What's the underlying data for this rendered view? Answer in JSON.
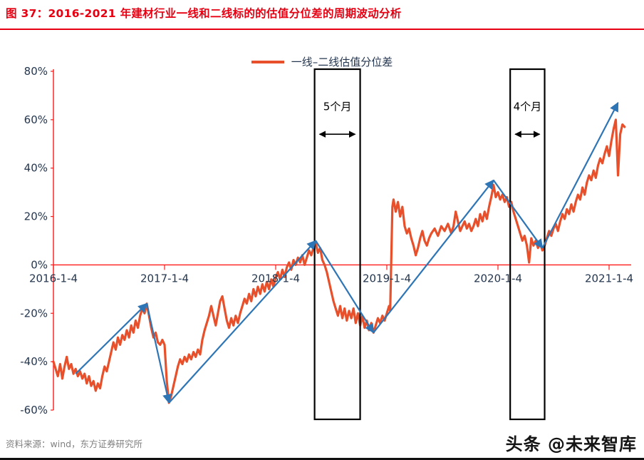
{
  "page": {
    "title": "图 37：2016-2021 年建材行业一线和二线标的的估值分位差的周期波动分析",
    "source_note": "资料来源：wind，东方证券研究所",
    "watermark": "头条 @未来智库"
  },
  "colors": {
    "title_red": "#e60012",
    "axis_red": "#ff1a1a",
    "series_line": "#e8502b",
    "trend_arrow_blue": "#2e75b6",
    "box_black": "#000000",
    "tick_text": "#24364f",
    "source_gray": "#808080",
    "watermark_dark": "#141414"
  },
  "chart_data": {
    "type": "line",
    "title": "",
    "legend": [
      {
        "label": "一线–二线估值分位差",
        "color": "#e8502b"
      }
    ],
    "x_axis": {
      "domain_years": [
        0,
        5.17
      ],
      "ticks": [
        {
          "t": 0,
          "label": "2016-1-4"
        },
        {
          "t": 1,
          "label": "2017-1-4"
        },
        {
          "t": 2,
          "label": "2018-1-4"
        },
        {
          "t": 3,
          "label": "2019-1-4"
        },
        {
          "t": 4,
          "label": "2020-1-4"
        },
        {
          "t": 5,
          "label": "2021-1-4"
        }
      ]
    },
    "y_axis": {
      "min": -60,
      "max": 80,
      "step": 20,
      "ticks": [
        {
          "v": 80,
          "label": "80%"
        },
        {
          "v": 60,
          "label": "60%"
        },
        {
          "v": 40,
          "label": "40%"
        },
        {
          "v": 20,
          "label": "20%"
        },
        {
          "v": 0,
          "label": "0%"
        },
        {
          "v": -20,
          "label": "-20%"
        },
        {
          "v": -40,
          "label": "-40%"
        },
        {
          "v": -60,
          "label": "-60%"
        }
      ]
    },
    "zero_line": true,
    "grid": false,
    "series": [
      {
        "name": "一线–二线估值分位差",
        "color": "#e8502b",
        "points": [
          [
            0.0,
            -40
          ],
          [
            0.02,
            -43
          ],
          [
            0.04,
            -46
          ],
          [
            0.06,
            -41
          ],
          [
            0.08,
            -47
          ],
          [
            0.1,
            -42
          ],
          [
            0.12,
            -38
          ],
          [
            0.14,
            -43
          ],
          [
            0.16,
            -41
          ],
          [
            0.18,
            -45
          ],
          [
            0.2,
            -43
          ],
          [
            0.22,
            -46
          ],
          [
            0.24,
            -44
          ],
          [
            0.26,
            -47
          ],
          [
            0.28,
            -45
          ],
          [
            0.3,
            -49
          ],
          [
            0.32,
            -46
          ],
          [
            0.34,
            -50
          ],
          [
            0.36,
            -48
          ],
          [
            0.38,
            -52
          ],
          [
            0.4,
            -49
          ],
          [
            0.42,
            -51
          ],
          [
            0.44,
            -46
          ],
          [
            0.46,
            -42
          ],
          [
            0.48,
            -44
          ],
          [
            0.5,
            -40
          ],
          [
            0.52,
            -36
          ],
          [
            0.54,
            -32
          ],
          [
            0.56,
            -35
          ],
          [
            0.58,
            -30
          ],
          [
            0.6,
            -33
          ],
          [
            0.62,
            -29
          ],
          [
            0.64,
            -31
          ],
          [
            0.66,
            -27
          ],
          [
            0.68,
            -30
          ],
          [
            0.7,
            -25
          ],
          [
            0.72,
            -28
          ],
          [
            0.74,
            -23
          ],
          [
            0.76,
            -26
          ],
          [
            0.78,
            -21
          ],
          [
            0.8,
            -18
          ],
          [
            0.82,
            -20
          ],
          [
            0.84,
            -16
          ],
          [
            0.86,
            -21
          ],
          [
            0.88,
            -26
          ],
          [
            0.9,
            -30
          ],
          [
            0.92,
            -28
          ],
          [
            0.94,
            -32
          ],
          [
            0.96,
            -33
          ],
          [
            0.98,
            -31
          ],
          [
            1.0,
            -33
          ],
          [
            1.02,
            -48
          ],
          [
            1.04,
            -57
          ],
          [
            1.06,
            -54
          ],
          [
            1.08,
            -50
          ],
          [
            1.1,
            -46
          ],
          [
            1.12,
            -42
          ],
          [
            1.14,
            -39
          ],
          [
            1.16,
            -41
          ],
          [
            1.18,
            -38
          ],
          [
            1.2,
            -40
          ],
          [
            1.22,
            -37
          ],
          [
            1.24,
            -39
          ],
          [
            1.26,
            -36
          ],
          [
            1.28,
            -38
          ],
          [
            1.3,
            -35
          ],
          [
            1.32,
            -37
          ],
          [
            1.34,
            -31
          ],
          [
            1.36,
            -27
          ],
          [
            1.38,
            -24
          ],
          [
            1.4,
            -21
          ],
          [
            1.42,
            -17
          ],
          [
            1.44,
            -21
          ],
          [
            1.46,
            -25
          ],
          [
            1.48,
            -20
          ],
          [
            1.5,
            -15
          ],
          [
            1.52,
            -13
          ],
          [
            1.54,
            -18
          ],
          [
            1.56,
            -23
          ],
          [
            1.58,
            -26
          ],
          [
            1.6,
            -22
          ],
          [
            1.62,
            -25
          ],
          [
            1.64,
            -21
          ],
          [
            1.66,
            -24
          ],
          [
            1.68,
            -20
          ],
          [
            1.7,
            -17
          ],
          [
            1.72,
            -14
          ],
          [
            1.74,
            -16
          ],
          [
            1.76,
            -12
          ],
          [
            1.78,
            -15
          ],
          [
            1.8,
            -10
          ],
          [
            1.82,
            -13
          ],
          [
            1.84,
            -9
          ],
          [
            1.86,
            -12
          ],
          [
            1.88,
            -8
          ],
          [
            1.9,
            -11
          ],
          [
            1.92,
            -7
          ],
          [
            1.94,
            -10
          ],
          [
            1.96,
            -6
          ],
          [
            1.98,
            -9
          ],
          [
            2.0,
            -5
          ],
          [
            2.02,
            -3
          ],
          [
            2.04,
            -6
          ],
          [
            2.06,
            -2
          ],
          [
            2.08,
            -5
          ],
          [
            2.1,
            -1
          ],
          [
            2.12,
            1
          ],
          [
            2.14,
            -2
          ],
          [
            2.16,
            2
          ],
          [
            2.18,
            0
          ],
          [
            2.2,
            3
          ],
          [
            2.22,
            1
          ],
          [
            2.24,
            4
          ],
          [
            2.26,
            0
          ],
          [
            2.28,
            3
          ],
          [
            2.3,
            6
          ],
          [
            2.32,
            4
          ],
          [
            2.34,
            7
          ],
          [
            2.36,
            9
          ],
          [
            2.38,
            5
          ],
          [
            2.4,
            7
          ],
          [
            2.42,
            2
          ],
          [
            2.44,
            0
          ],
          [
            2.46,
            -3
          ],
          [
            2.48,
            -7
          ],
          [
            2.5,
            -11
          ],
          [
            2.52,
            -15
          ],
          [
            2.54,
            -18
          ],
          [
            2.56,
            -21
          ],
          [
            2.58,
            -17
          ],
          [
            2.6,
            -22
          ],
          [
            2.62,
            -18
          ],
          [
            2.64,
            -23
          ],
          [
            2.66,
            -19
          ],
          [
            2.68,
            -22
          ],
          [
            2.7,
            -18
          ],
          [
            2.72,
            -24
          ],
          [
            2.74,
            -20
          ],
          [
            2.76,
            -25
          ],
          [
            2.78,
            -21
          ],
          [
            2.8,
            -26
          ],
          [
            2.82,
            -23
          ],
          [
            2.84,
            -27
          ],
          [
            2.86,
            -24
          ],
          [
            2.88,
            -28
          ],
          [
            2.9,
            -25
          ],
          [
            2.92,
            -22
          ],
          [
            2.94,
            -24
          ],
          [
            2.96,
            -21
          ],
          [
            2.98,
            -23
          ],
          [
            3.0,
            -20
          ],
          [
            3.02,
            -17
          ],
          [
            3.03,
            -19
          ],
          [
            3.05,
            24
          ],
          [
            3.06,
            27
          ],
          [
            3.08,
            22
          ],
          [
            3.1,
            26
          ],
          [
            3.12,
            20
          ],
          [
            3.14,
            24
          ],
          [
            3.16,
            16
          ],
          [
            3.18,
            13
          ],
          [
            3.2,
            15
          ],
          [
            3.22,
            11
          ],
          [
            3.24,
            8
          ],
          [
            3.26,
            4
          ],
          [
            3.28,
            7
          ],
          [
            3.3,
            11
          ],
          [
            3.32,
            14
          ],
          [
            3.34,
            10
          ],
          [
            3.36,
            8
          ],
          [
            3.38,
            11
          ],
          [
            3.4,
            13
          ],
          [
            3.43,
            15
          ],
          [
            3.46,
            12
          ],
          [
            3.49,
            16
          ],
          [
            3.52,
            14
          ],
          [
            3.55,
            17
          ],
          [
            3.58,
            13
          ],
          [
            3.6,
            16
          ],
          [
            3.62,
            22
          ],
          [
            3.64,
            18
          ],
          [
            3.66,
            14
          ],
          [
            3.68,
            16
          ],
          [
            3.7,
            18
          ],
          [
            3.72,
            15
          ],
          [
            3.74,
            17
          ],
          [
            3.76,
            14
          ],
          [
            3.78,
            16
          ],
          [
            3.8,
            19
          ],
          [
            3.82,
            16
          ],
          [
            3.84,
            21
          ],
          [
            3.86,
            18
          ],
          [
            3.88,
            22
          ],
          [
            3.9,
            19
          ],
          [
            3.92,
            24
          ],
          [
            3.94,
            28
          ],
          [
            3.96,
            33
          ],
          [
            3.98,
            28
          ],
          [
            4.0,
            30
          ],
          [
            4.02,
            27
          ],
          [
            4.04,
            29
          ],
          [
            4.06,
            26
          ],
          [
            4.08,
            28
          ],
          [
            4.1,
            24
          ],
          [
            4.12,
            26
          ],
          [
            4.14,
            22
          ],
          [
            4.16,
            19
          ],
          [
            4.18,
            16
          ],
          [
            4.2,
            13
          ],
          [
            4.22,
            10
          ],
          [
            4.24,
            12
          ],
          [
            4.26,
            8
          ],
          [
            4.28,
            1
          ],
          [
            4.3,
            11
          ],
          [
            4.32,
            8
          ],
          [
            4.34,
            10
          ],
          [
            4.36,
            7
          ],
          [
            4.38,
            9
          ],
          [
            4.4,
            6
          ],
          [
            4.42,
            8
          ],
          [
            4.44,
            11
          ],
          [
            4.46,
            14
          ],
          [
            4.48,
            12
          ],
          [
            4.5,
            15
          ],
          [
            4.52,
            17
          ],
          [
            4.54,
            14
          ],
          [
            4.56,
            18
          ],
          [
            4.58,
            21
          ],
          [
            4.6,
            19
          ],
          [
            4.62,
            23
          ],
          [
            4.64,
            21
          ],
          [
            4.66,
            25
          ],
          [
            4.68,
            22
          ],
          [
            4.7,
            26
          ],
          [
            4.72,
            29
          ],
          [
            4.74,
            27
          ],
          [
            4.76,
            32
          ],
          [
            4.78,
            29
          ],
          [
            4.8,
            34
          ],
          [
            4.82,
            37
          ],
          [
            4.84,
            35
          ],
          [
            4.86,
            39
          ],
          [
            4.88,
            36
          ],
          [
            4.9,
            41
          ],
          [
            4.92,
            44
          ],
          [
            4.94,
            42
          ],
          [
            4.96,
            46
          ],
          [
            4.98,
            49
          ],
          [
            5.0,
            45
          ],
          [
            5.02,
            51
          ],
          [
            5.04,
            56
          ],
          [
            5.06,
            60
          ],
          [
            5.08,
            37
          ],
          [
            5.1,
            54
          ],
          [
            5.12,
            58
          ],
          [
            5.14,
            57
          ]
        ]
      }
    ],
    "trend_arrows": [
      {
        "from": [
          0.2,
          -45
        ],
        "to": [
          0.84,
          -16
        ]
      },
      {
        "from": [
          0.84,
          -16
        ],
        "to": [
          1.04,
          -57
        ]
      },
      {
        "from": [
          1.04,
          -57
        ],
        "to": [
          2.36,
          10
        ]
      },
      {
        "from": [
          2.36,
          10
        ],
        "to": [
          2.88,
          -28
        ]
      },
      {
        "from": [
          2.88,
          -28
        ],
        "to": [
          3.96,
          35
        ]
      },
      {
        "from": [
          3.96,
          35
        ],
        "to": [
          4.4,
          7
        ]
      },
      {
        "from": [
          4.4,
          7
        ],
        "to": [
          5.08,
          67
        ]
      }
    ],
    "period_boxes": [
      {
        "t_start": 2.35,
        "t_end": 2.76,
        "label": "5个月",
        "label_y_pct": 64,
        "arrow_y_pct": 54
      },
      {
        "t_start": 4.11,
        "t_end": 4.42,
        "label": "4个月",
        "label_y_pct": 64,
        "arrow_y_pct": 54
      }
    ]
  }
}
